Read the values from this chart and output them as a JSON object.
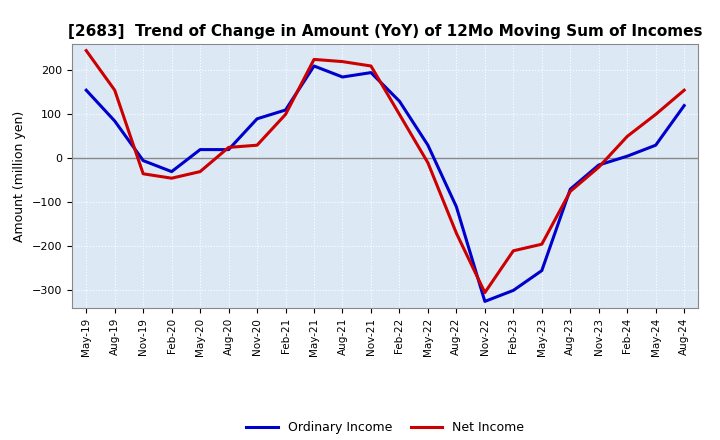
{
  "title": "[2683]  Trend of Change in Amount (YoY) of 12Mo Moving Sum of Incomes",
  "ylabel": "Amount (million yen)",
  "ylim": [
    -340,
    260
  ],
  "yticks": [
    -300,
    -200,
    -100,
    0,
    100,
    200
  ],
  "background_color": "#ffffff",
  "plot_bg_color": "#dce9f5",
  "grid_color": "#ffffff",
  "zero_line_color": "#888888",
  "ordinary_income_color": "#0000cc",
  "net_income_color": "#cc0000",
  "line_width": 2.2,
  "dates": [
    "May-19",
    "Aug-19",
    "Nov-19",
    "Feb-20",
    "May-20",
    "Aug-20",
    "Nov-20",
    "Feb-21",
    "May-21",
    "Aug-21",
    "Nov-21",
    "Feb-22",
    "May-22",
    "Aug-22",
    "Nov-22",
    "Feb-23",
    "May-23",
    "Aug-23",
    "Nov-23",
    "Feb-24",
    "May-24",
    "Aug-24"
  ],
  "ordinary_income": [
    155,
    85,
    -5,
    -30,
    20,
    20,
    90,
    110,
    210,
    185,
    195,
    130,
    30,
    -110,
    -325,
    -300,
    -255,
    -70,
    -15,
    5,
    30,
    120
  ],
  "net_income": [
    245,
    155,
    -35,
    -45,
    -30,
    25,
    30,
    100,
    225,
    220,
    210,
    100,
    -10,
    -170,
    -305,
    -210,
    -195,
    -75,
    -20,
    50,
    100,
    155
  ]
}
